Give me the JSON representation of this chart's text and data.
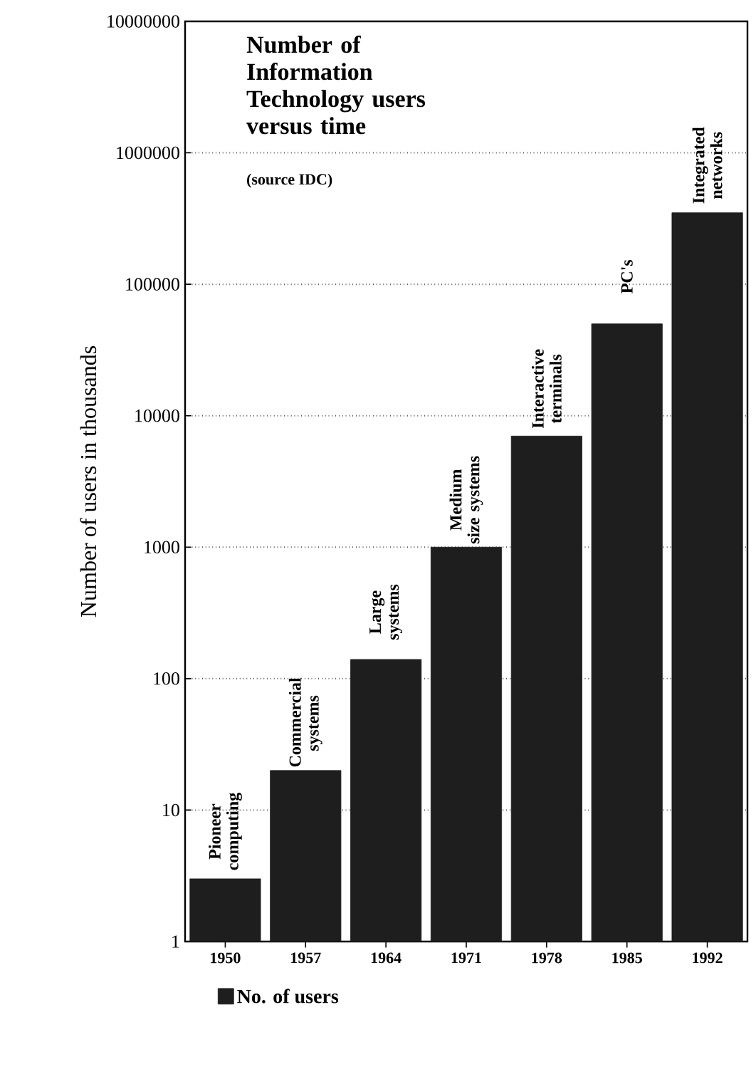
{
  "chart_data": {
    "type": "bar",
    "title": "Number of Information Technology users versus time",
    "ylabel": "Number of users in thousands",
    "categories": [
      "1950",
      "1957",
      "1964",
      "1971",
      "1978",
      "1985",
      "1992"
    ],
    "series": [
      {
        "name": "No. of users",
        "color": "#1e1e1e",
        "values": [
          3,
          20,
          140,
          1000,
          7000,
          50000,
          350000
        ]
      }
    ],
    "log": "y",
    "ylim": [
      1,
      10000000
    ],
    "yticks": [
      1,
      10,
      100,
      1000,
      10000,
      100000,
      1000000,
      10000000
    ],
    "grid": "y",
    "legend": "bottom",
    "annotations": [
      "(source IDC)",
      {
        "text": "Pioneer computing",
        "x": "1950",
        "y": 3
      },
      {
        "text": "Commercial systems",
        "x": "1957",
        "y": 20
      },
      {
        "text": "Large systems",
        "x": "1964",
        "y": 140
      },
      {
        "text": "Medium size systems",
        "x": "1971",
        "y": 1000
      },
      {
        "text": "Interactive terminals",
        "x": "1978",
        "y": 7000
      },
      {
        "text": "PC's",
        "x": "1985",
        "y": 50000
      },
      {
        "text": "Integrated networks",
        "x": "1992",
        "y": 350000
      }
    ]
  }
}
